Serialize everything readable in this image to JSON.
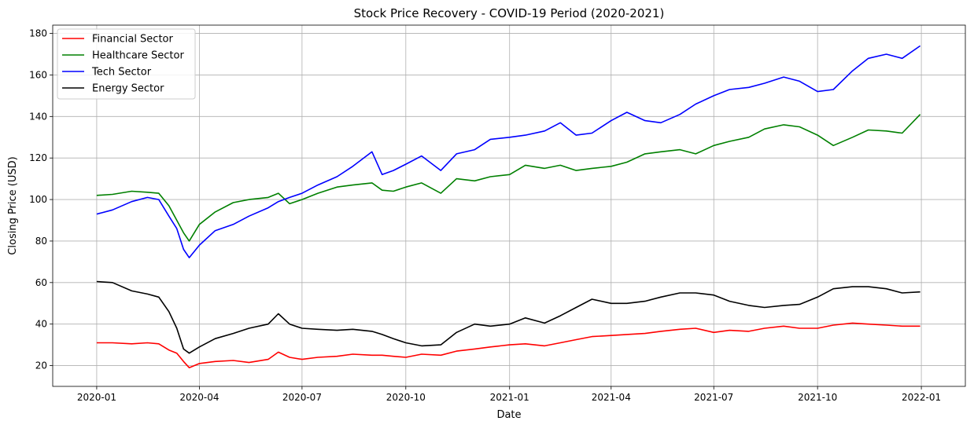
{
  "chart_data": {
    "type": "line",
    "title": "Stock Price Recovery - COVID-19 Period (2020-2021)",
    "xlabel": "Date",
    "ylabel": "Closing Price (USD)",
    "xlim": [
      "2019-11-23",
      "2022-02-09"
    ],
    "ylim": [
      10,
      184
    ],
    "x_ticks": [
      "2020-01-01",
      "2020-04-01",
      "2020-07-01",
      "2020-10-01",
      "2021-01-01",
      "2021-04-01",
      "2021-07-01",
      "2021-10-01",
      "2022-01-01"
    ],
    "x_tick_labels": [
      "2020-01",
      "2020-04",
      "2020-07",
      "2020-10",
      "2021-01",
      "2021-04",
      "2021-07",
      "2021-10",
      "2022-01"
    ],
    "y_ticks": [
      20,
      40,
      60,
      80,
      100,
      120,
      140,
      160,
      180
    ],
    "grid": true,
    "legend_position": "upper-left",
    "x": [
      "2020-01-01",
      "2020-01-15",
      "2020-02-01",
      "2020-02-15",
      "2020-02-25",
      "2020-03-05",
      "2020-03-12",
      "2020-03-18",
      "2020-03-23",
      "2020-04-01",
      "2020-04-15",
      "2020-05-01",
      "2020-05-15",
      "2020-06-01",
      "2020-06-10",
      "2020-06-20",
      "2020-07-01",
      "2020-07-15",
      "2020-08-01",
      "2020-08-15",
      "2020-09-01",
      "2020-09-10",
      "2020-09-20",
      "2020-10-01",
      "2020-10-15",
      "2020-11-01",
      "2020-11-15",
      "2020-12-01",
      "2020-12-15",
      "2021-01-01",
      "2021-01-15",
      "2021-02-01",
      "2021-02-15",
      "2021-03-01",
      "2021-03-15",
      "2021-04-01",
      "2021-04-15",
      "2021-05-01",
      "2021-05-15",
      "2021-06-01",
      "2021-06-15",
      "2021-07-01",
      "2021-07-15",
      "2021-08-01",
      "2021-08-15",
      "2021-09-01",
      "2021-09-15",
      "2021-10-01",
      "2021-10-15",
      "2021-11-01",
      "2021-11-15",
      "2021-12-01",
      "2021-12-15",
      "2021-12-31"
    ],
    "series": [
      {
        "name": "Financial Sector",
        "color": "#ff0000",
        "values": [
          31,
          31,
          30.5,
          31,
          30.5,
          27.5,
          26,
          22,
          19,
          21,
          22,
          22.5,
          21.5,
          23,
          26.5,
          24,
          23,
          24,
          24.5,
          25.5,
          25,
          25,
          24.5,
          24,
          25.5,
          25,
          27,
          28,
          29,
          30,
          30.5,
          29.5,
          31,
          32.5,
          34,
          34.5,
          35,
          35.5,
          36.5,
          37.5,
          38,
          36,
          37,
          36.5,
          38,
          39,
          38,
          38,
          39.5,
          40.5,
          40,
          39.5,
          39,
          39
        ]
      },
      {
        "name": "Healthcare Sector",
        "color": "#008000",
        "values": [
          102,
          102.5,
          104,
          103.5,
          103,
          97,
          90,
          84,
          80,
          88,
          94,
          98.5,
          100,
          101,
          103,
          98,
          100,
          103,
          106,
          107,
          108,
          104.5,
          104,
          106,
          108,
          103,
          110,
          109,
          111,
          112,
          116.5,
          115,
          116.5,
          114,
          115,
          116,
          118,
          122,
          123,
          124,
          122,
          126,
          128,
          130,
          134,
          136,
          135,
          131,
          126,
          130,
          133.5,
          133,
          132,
          141
        ]
      },
      {
        "name": "Tech Sector",
        "color": "#0000ff",
        "values": [
          93,
          95,
          99,
          101,
          100,
          92,
          86,
          76,
          72,
          78,
          85,
          88,
          92,
          96,
          99,
          101,
          103,
          107,
          111,
          116,
          123,
          112,
          114,
          117,
          121,
          114,
          122,
          124,
          129,
          130,
          131,
          133,
          137,
          131,
          132,
          138,
          142,
          138,
          137,
          141,
          146,
          150,
          153,
          154,
          156,
          159,
          157,
          152,
          153,
          162,
          168,
          170,
          168,
          174
        ]
      },
      {
        "name": "Energy Sector",
        "color": "#000000",
        "values": [
          60.5,
          60,
          56,
          54.5,
          53,
          46,
          38,
          28,
          26,
          29,
          33,
          35.5,
          38,
          40,
          45,
          40,
          38,
          37.5,
          37,
          37.5,
          36.5,
          35,
          33,
          31,
          29.5,
          30,
          36,
          40,
          39,
          40,
          43,
          40.5,
          44,
          48,
          52,
          50,
          50,
          51,
          53,
          55,
          55,
          54,
          51,
          49,
          48,
          49,
          49.5,
          53,
          57,
          58,
          58,
          57,
          55,
          55.5
        ]
      }
    ]
  }
}
